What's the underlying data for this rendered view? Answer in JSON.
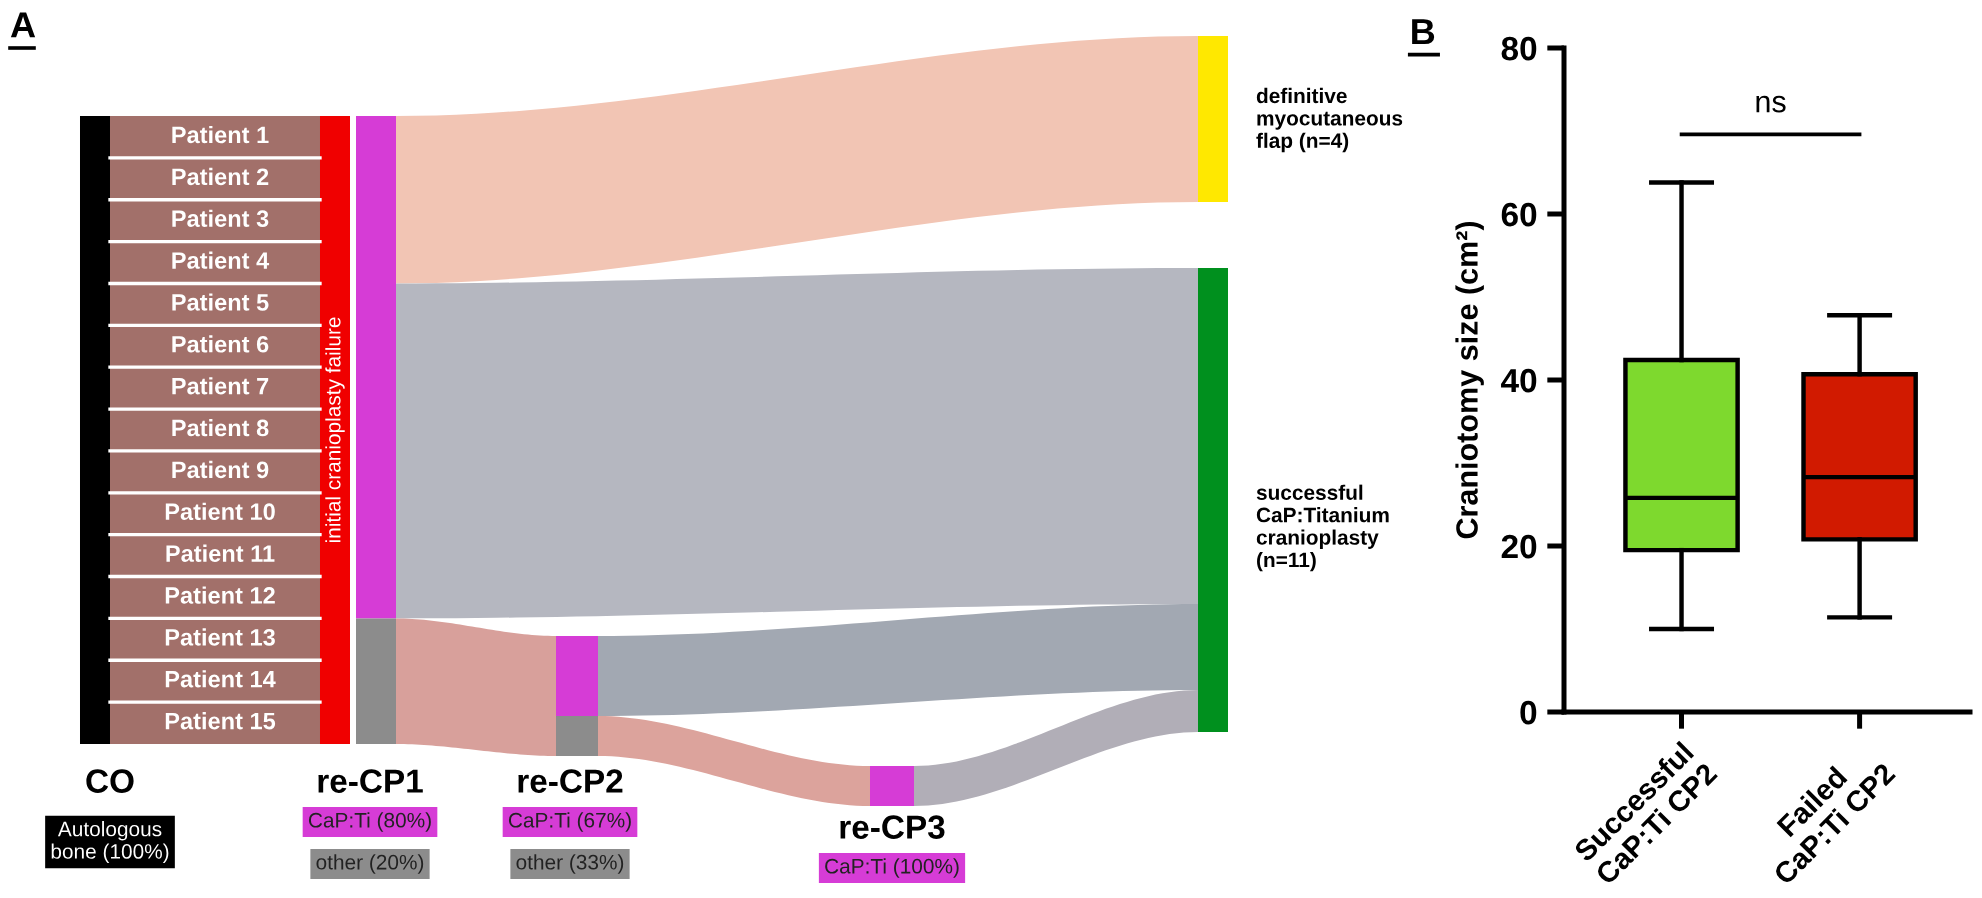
{
  "chart_data": [
    {
      "type": "other",
      "title": "A",
      "categories": [
        "Patient 1",
        "Patient 2",
        "Patient 3",
        "Patient 4",
        "Patient 5",
        "Patient 6",
        "Patient 7",
        "Patient 8",
        "Patient 9",
        "Patient 10",
        "Patient 11",
        "Patient 12",
        "Patient 13",
        "Patient 14",
        "Patient 15"
      ],
      "annotations": [
        "initial cranioplasty failure",
        "CO",
        "Autologous\nbone (100%)",
        "re-CP1",
        "CaP:Ti (80%)",
        "other (20%)",
        "re-CP2",
        "CaP:Ti (67%)",
        "other (33%)",
        "re-CP3",
        "CaP:Ti (100%)",
        "definitive\nmyocutaneous\nflap (n=4)",
        "successful\nCaP:Titanium\ncranioplasty\n(n=11)"
      ]
    },
    {
      "type": "box",
      "title": "B",
      "ylabel": "Craniotomy size (cm²)",
      "categories": [
        "Successful\nCaP:Ti CP2",
        "Failed\nCaP:Ti CP2"
      ],
      "colors": [
        "#7ed92e",
        "#d11a00"
      ],
      "boxes": [
        {
          "low": 10.0,
          "q1": 19.5,
          "median": 25.8,
          "q3": 42.4,
          "high": 63.8
        },
        {
          "low": 11.4,
          "q1": 20.8,
          "median": 28.3,
          "q3": 40.7,
          "high": 47.8
        }
      ],
      "ylim": [
        0,
        80
      ],
      "yticks": [
        0,
        20,
        40,
        60,
        80
      ],
      "grid": false,
      "annotations": [
        "ns"
      ]
    }
  ]
}
